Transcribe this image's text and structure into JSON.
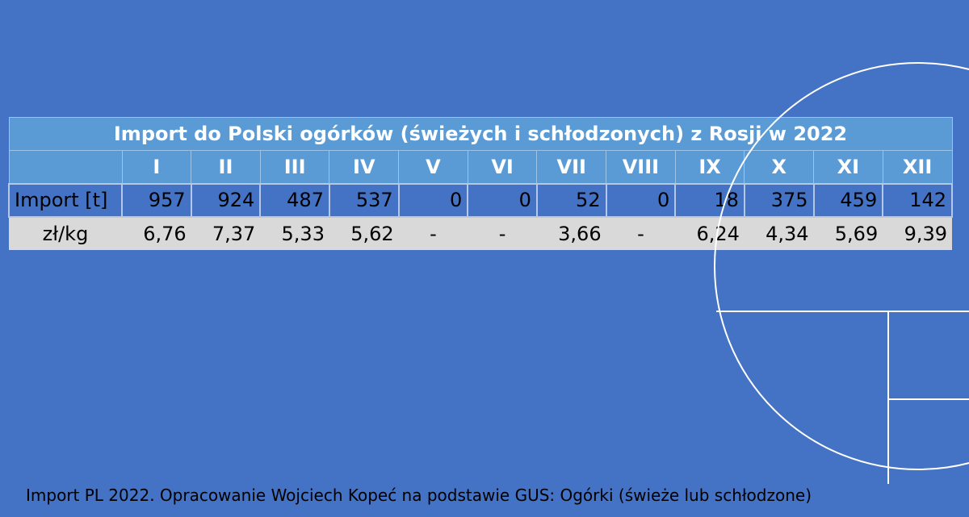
{
  "table": {
    "title": "Import do Polski ogórków (świeżych i schłodzonych) z Rosji w 2022",
    "header": [
      "I",
      "II",
      "III",
      "IV",
      "V",
      "VI",
      "VII",
      "VIII",
      "IX",
      "X",
      "XI",
      "XII"
    ],
    "rows": [
      {
        "label": "Import [t]",
        "cells": [
          957,
          924,
          487,
          537,
          0,
          0,
          52,
          0,
          18,
          375,
          459,
          142
        ]
      },
      {
        "label": "zł/kg",
        "cells": [
          "6,76",
          "7,37",
          "5,33",
          "5,62",
          "-",
          "-",
          "3,66",
          "-",
          "6,24",
          "4,34",
          "5,69",
          "9,39"
        ]
      }
    ]
  },
  "footer": "Import PL  2022. Opracowanie Wojciech Kopeć na podstawie GUS: Ogórki (świeże lub schłodzone)"
}
